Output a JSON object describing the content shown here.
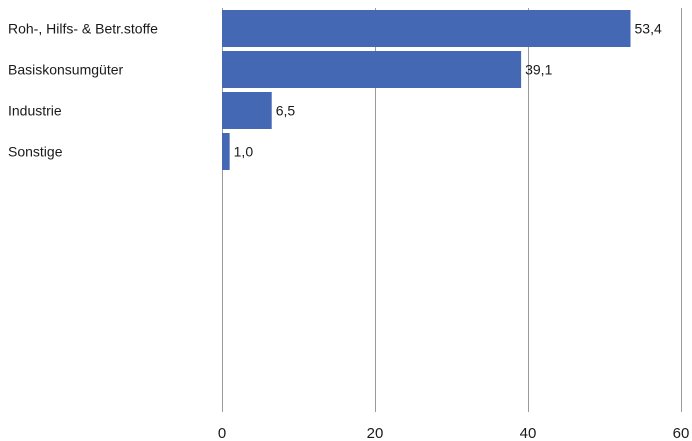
{
  "chart_data": {
    "type": "bar",
    "orientation": "horizontal",
    "categories": [
      "Roh-, Hilfs- & Betr.stoffe",
      "Basiskonsumgüter",
      "Industrie",
      "Sonstige"
    ],
    "values": [
      53.4,
      39.1,
      6.5,
      1.0
    ],
    "value_labels": [
      "53,4",
      "39,1",
      "6,5",
      "1,0"
    ],
    "xlim": [
      0,
      60
    ],
    "x_ticks": [
      0,
      20,
      40,
      60
    ],
    "x_tick_labels": [
      "0",
      "20",
      "40",
      "60"
    ],
    "grid": "vertical",
    "bar_color": "#4468b4",
    "grid_color": "#9a9a9a"
  }
}
